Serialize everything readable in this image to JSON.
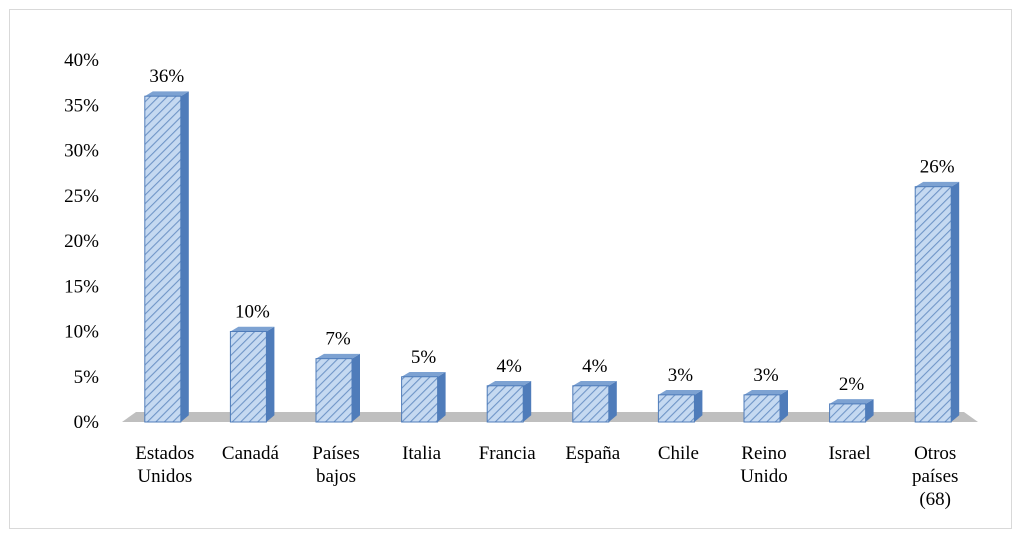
{
  "chart_data": {
    "type": "bar",
    "title": "",
    "xlabel": "",
    "ylabel": "",
    "ylim": [
      0,
      40
    ],
    "yticks": [
      "0%",
      "5%",
      "10%",
      "15%",
      "20%",
      "25%",
      "30%",
      "35%",
      "40%"
    ],
    "categories": [
      [
        "Estados",
        "Unidos"
      ],
      [
        "Canadá"
      ],
      [
        "Países",
        "bajos"
      ],
      [
        "Italia"
      ],
      [
        "Francia"
      ],
      [
        "España"
      ],
      [
        "Chile"
      ],
      [
        "Reino",
        "Unido"
      ],
      [
        "Israel"
      ],
      [
        "Otros",
        "países",
        "(68)"
      ]
    ],
    "values": [
      36,
      10,
      7,
      5,
      4,
      4,
      3,
      3,
      2,
      26
    ],
    "data_labels": [
      "36%",
      "10%",
      "7%",
      "5%",
      "4%",
      "4%",
      "3%",
      "3%",
      "2%",
      "26%"
    ],
    "grid": false,
    "legend": "none",
    "colors": {
      "bar_fill": "#c5d9f1",
      "bar_hatch": "#6f95c7",
      "bar_side": "#4f7cba",
      "bar_top": "#7da2d2",
      "floor": "#bfbfbf"
    }
  }
}
